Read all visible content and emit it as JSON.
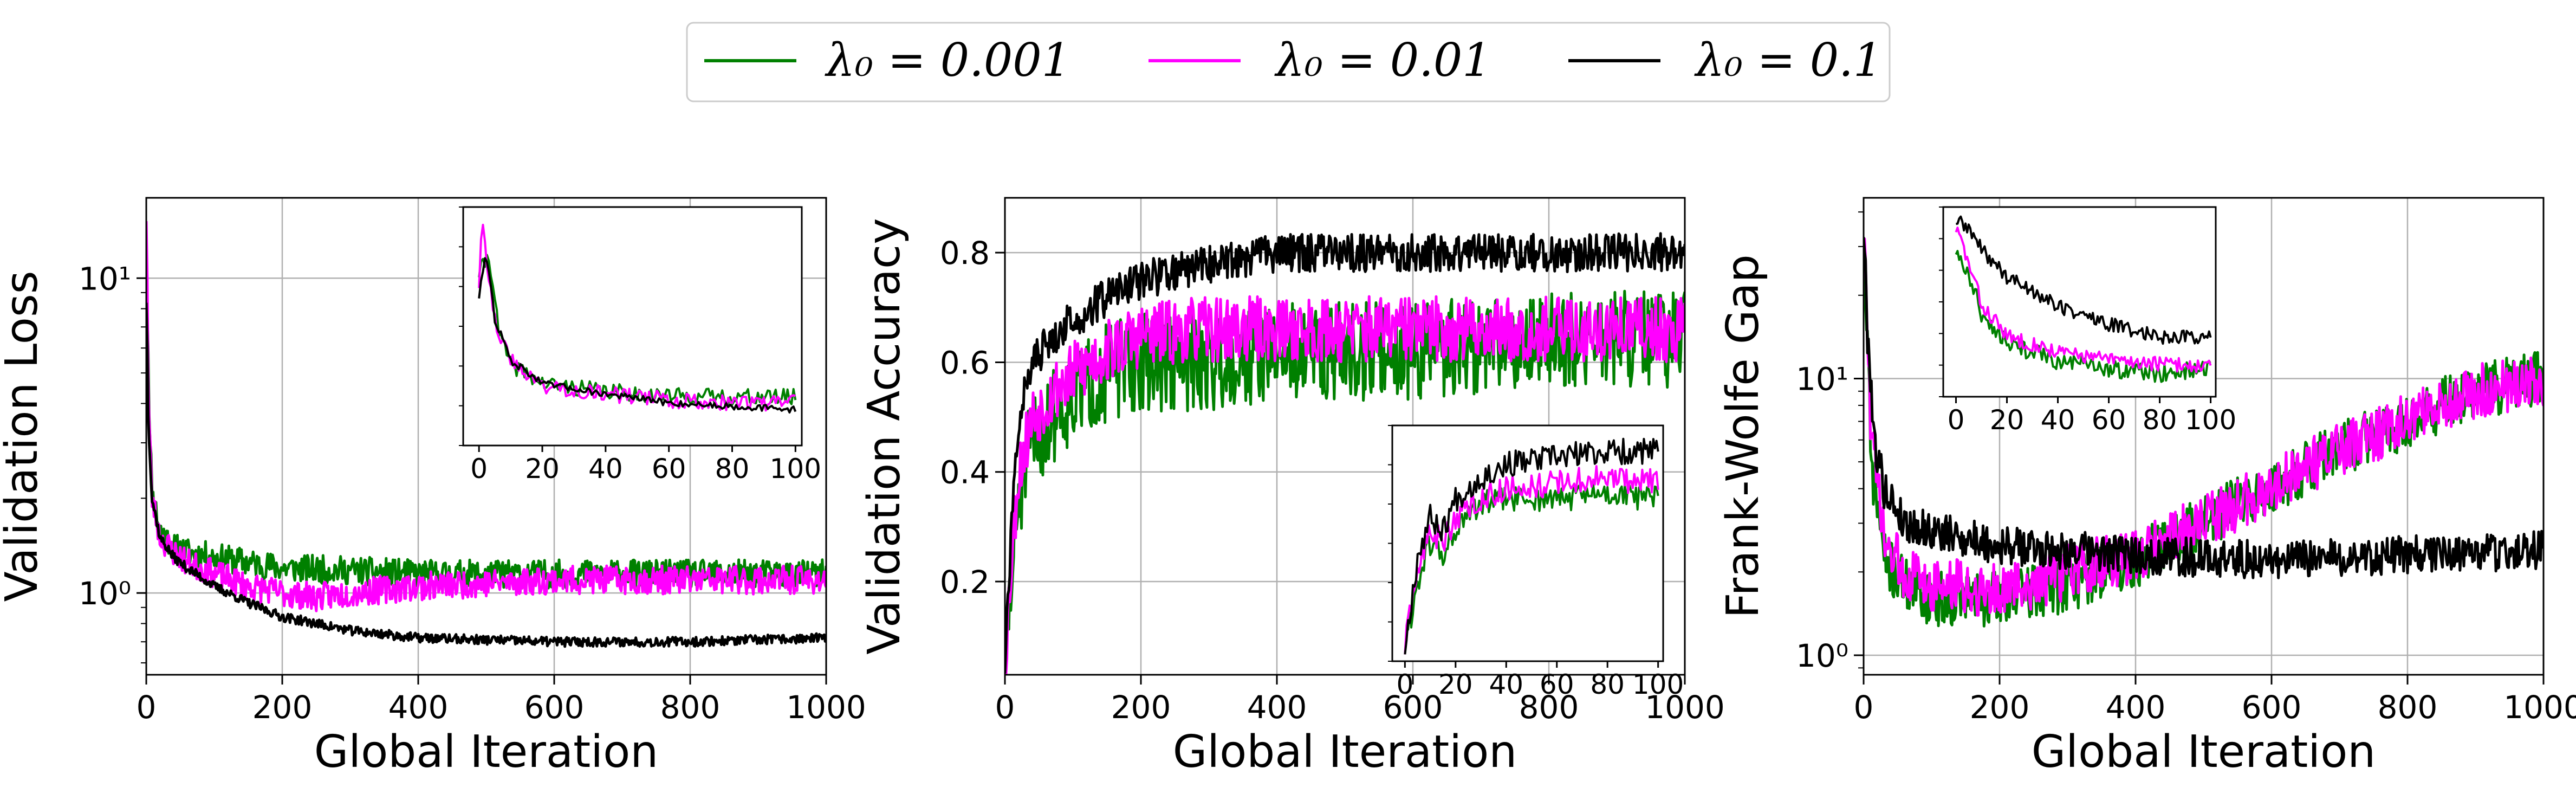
{
  "legend": {
    "entries": [
      {
        "label": "λ₀ = 0.001",
        "color": "#008000"
      },
      {
        "label": "λ₀ = 0.01",
        "color": "#ff00ff"
      },
      {
        "label": "λ₀ = 0.1",
        "color": "#000000"
      }
    ]
  },
  "chart_data": [
    {
      "type": "line",
      "xlabel": "Global Iteration",
      "ylabel": "Validation Loss",
      "xlim": [
        0,
        1000
      ],
      "ylim": [
        0.55,
        18
      ],
      "yscale": "log",
      "xticks": [
        0,
        200,
        400,
        600,
        800,
        1000
      ],
      "yticks": [
        {
          "value": 1,
          "label": "10⁰"
        },
        {
          "value": 10,
          "label": "10¹"
        }
      ],
      "grid": true,
      "series": [
        {
          "name": "λ₀ = 0.001",
          "color": "#008000",
          "noise": 0.045,
          "seed": 11,
          "x": [
            0,
            5,
            10,
            20,
            40,
            60,
            100,
            150,
            200,
            300,
            400,
            600,
            800,
            1000
          ],
          "y": [
            10,
            3.0,
            2.0,
            1.6,
            1.4,
            1.35,
            1.3,
            1.25,
            1.2,
            1.18,
            1.15,
            1.15,
            1.15,
            1.15
          ]
        },
        {
          "name": "λ₀ = 0.01",
          "color": "#ff00ff",
          "noise": 0.045,
          "seed": 23,
          "x": [
            0,
            3,
            8,
            20,
            40,
            60,
            100,
            150,
            200,
            250,
            300,
            400,
            600,
            800,
            1000
          ],
          "y": [
            16,
            4.0,
            2.0,
            1.5,
            1.35,
            1.25,
            1.15,
            1.05,
            1.0,
            0.97,
            1.0,
            1.05,
            1.1,
            1.1,
            1.1
          ]
        },
        {
          "name": "λ₀ = 0.1",
          "color": "#000000",
          "noise": 0.015,
          "seed": 37,
          "x": [
            0,
            3,
            8,
            20,
            40,
            60,
            100,
            150,
            200,
            300,
            400,
            600,
            800,
            1000
          ],
          "y": [
            8.5,
            3.5,
            2.0,
            1.5,
            1.3,
            1.2,
            1.05,
            0.93,
            0.84,
            0.76,
            0.72,
            0.7,
            0.7,
            0.72
          ]
        }
      ],
      "inset": {
        "xlim": [
          -5,
          102
        ],
        "yscale": "log",
        "ylim": [
          0.6,
          18
        ],
        "xticks": [
          0,
          20,
          40,
          60,
          80,
          100
        ],
        "series": [
          {
            "name": "λ₀ = 0.001",
            "color": "#008000",
            "noise": 0.05,
            "seed": 41,
            "x": [
              0,
              3,
              6,
              10,
              20,
              40,
              60,
              80,
              100
            ],
            "y": [
              7,
              9,
              3.0,
              1.9,
              1.45,
              1.3,
              1.22,
              1.2,
              1.2
            ]
          },
          {
            "name": "λ₀ = 0.01",
            "color": "#ff00ff",
            "noise": 0.05,
            "seed": 43,
            "x": [
              0,
              1,
              3,
              6,
              10,
              20,
              40,
              60,
              80,
              100
            ],
            "y": [
              6,
              16,
              6,
              3.0,
              2.0,
              1.4,
              1.25,
              1.15,
              1.1,
              1.1
            ]
          },
          {
            "name": "λ₀ = 0.1",
            "color": "#000000",
            "noise": 0.02,
            "seed": 47,
            "x": [
              0,
              2,
              5,
              10,
              20,
              40,
              60,
              80,
              100
            ],
            "y": [
              5,
              9,
              3.5,
              2.0,
              1.45,
              1.25,
              1.1,
              1.05,
              1.0
            ]
          }
        ]
      }
    },
    {
      "type": "line",
      "xlabel": "Global Iteration",
      "ylabel": "Validation Accuracy",
      "xlim": [
        0,
        1000
      ],
      "ylim": [
        0.03,
        0.9
      ],
      "yscale": "linear",
      "xticks": [
        0,
        200,
        400,
        600,
        800,
        1000
      ],
      "yticks": [
        {
          "value": 0.2,
          "label": "0.2"
        },
        {
          "value": 0.4,
          "label": "0.4"
        },
        {
          "value": 0.6,
          "label": "0.6"
        },
        {
          "value": 0.8,
          "label": "0.8"
        }
      ],
      "grid": true,
      "series": [
        {
          "name": "λ₀ = 0.001",
          "color": "#008000",
          "noise": 0.09,
          "seed": 51,
          "x": [
            0,
            10,
            20,
            40,
            80,
            150,
            200,
            300,
            400,
            600,
            800,
            1000
          ],
          "y": [
            0.05,
            0.2,
            0.35,
            0.45,
            0.52,
            0.58,
            0.6,
            0.6,
            0.62,
            0.62,
            0.64,
            0.64
          ]
        },
        {
          "name": "λ₀ = 0.01",
          "color": "#ff00ff",
          "noise": 0.06,
          "seed": 53,
          "x": [
            0,
            10,
            20,
            40,
            80,
            150,
            200,
            300,
            400,
            600,
            800,
            1000
          ],
          "y": [
            0.05,
            0.25,
            0.4,
            0.5,
            0.56,
            0.62,
            0.65,
            0.66,
            0.66,
            0.66,
            0.66,
            0.66
          ]
        },
        {
          "name": "λ₀ = 0.1",
          "color": "#000000",
          "noise": 0.035,
          "seed": 57,
          "x": [
            0,
            10,
            20,
            40,
            80,
            150,
            200,
            300,
            400,
            600,
            800,
            1000
          ],
          "y": [
            0.05,
            0.3,
            0.5,
            0.6,
            0.66,
            0.72,
            0.75,
            0.78,
            0.8,
            0.8,
            0.8,
            0.8
          ]
        }
      ],
      "inset": {
        "xlim": [
          -5,
          102
        ],
        "yscale": "linear",
        "ylim": [
          0.0,
          0.9
        ],
        "xticks": [
          0,
          20,
          40,
          60,
          80,
          100
        ],
        "series": [
          {
            "name": "λ₀ = 0.001",
            "color": "#008000",
            "noise": 0.05,
            "seed": 61,
            "x": [
              0,
              5,
              10,
              15,
              20,
              30,
              40,
              60,
              80,
              100
            ],
            "y": [
              0.05,
              0.3,
              0.45,
              0.4,
              0.5,
              0.6,
              0.62,
              0.62,
              0.64,
              0.62
            ]
          },
          {
            "name": "λ₀ = 0.01",
            "color": "#ff00ff",
            "noise": 0.05,
            "seed": 63,
            "x": [
              0,
              5,
              10,
              15,
              20,
              30,
              40,
              60,
              80,
              100
            ],
            "y": [
              0.05,
              0.35,
              0.5,
              0.45,
              0.55,
              0.62,
              0.66,
              0.68,
              0.7,
              0.68
            ]
          },
          {
            "name": "λ₀ = 0.1",
            "color": "#000000",
            "noise": 0.05,
            "seed": 67,
            "x": [
              0,
              5,
              10,
              15,
              20,
              30,
              40,
              60,
              80,
              100
            ],
            "y": [
              0.05,
              0.4,
              0.55,
              0.5,
              0.62,
              0.7,
              0.75,
              0.78,
              0.8,
              0.8
            ]
          }
        ]
      }
    },
    {
      "type": "line",
      "xlabel": "Global Iteration",
      "ylabel": "Frank-Wolfe Gap",
      "xlim": [
        0,
        1000
      ],
      "ylim": [
        0.85,
        45
      ],
      "yscale": "log",
      "xticks": [
        0,
        200,
        400,
        600,
        800,
        1000
      ],
      "yticks": [
        {
          "value": 1,
          "label": "10⁰"
        },
        {
          "value": 10,
          "label": "10¹"
        }
      ],
      "grid": true,
      "series": [
        {
          "name": "λ₀ = 0.001",
          "color": "#008000",
          "noise": 0.1,
          "seed": 71,
          "x": [
            0,
            10,
            30,
            60,
            100,
            200,
            300,
            400,
            500,
            600,
            700,
            800,
            900,
            1000
          ],
          "y": [
            25,
            5,
            2.2,
            1.8,
            1.6,
            1.6,
            1.8,
            2.2,
            3.0,
            4.0,
            5.5,
            7.0,
            9.0,
            10
          ]
        },
        {
          "name": "λ₀ = 0.01",
          "color": "#ff00ff",
          "noise": 0.1,
          "seed": 73,
          "x": [
            0,
            10,
            30,
            60,
            100,
            200,
            300,
            400,
            500,
            600,
            700,
            800,
            900,
            1000
          ],
          "y": [
            30,
            6,
            2.5,
            2.0,
            1.8,
            1.7,
            2.0,
            2.3,
            3.0,
            4.0,
            5.5,
            7.0,
            9.0,
            10
          ]
        },
        {
          "name": "λ₀ = 0.1",
          "color": "#000000",
          "noise": 0.07,
          "seed": 79,
          "x": [
            0,
            5,
            15,
            30,
            60,
            100,
            200,
            300,
            400,
            600,
            800,
            1000
          ],
          "y": [
            35,
            15,
            6,
            4.0,
            3.0,
            2.8,
            2.5,
            2.4,
            2.3,
            2.2,
            2.3,
            2.4
          ]
        }
      ],
      "inset": {
        "xlim": [
          -5,
          102
        ],
        "yscale": "log",
        "ylim": [
          1.3,
          45
        ],
        "xticks": [
          0,
          20,
          40,
          60,
          80,
          100
        ],
        "series": [
          {
            "name": "λ₀ = 0.001",
            "color": "#008000",
            "noise": 0.07,
            "seed": 81,
            "x": [
              0,
              5,
              10,
              20,
              40,
              60,
              80,
              100
            ],
            "y": [
              20,
              12,
              6,
              3.5,
              2.5,
              2.2,
              2.0,
              2.2
            ]
          },
          {
            "name": "λ₀ = 0.01",
            "color": "#ff00ff",
            "noise": 0.06,
            "seed": 83,
            "x": [
              0,
              5,
              10,
              20,
              40,
              60,
              80,
              100
            ],
            "y": [
              30,
              15,
              7,
              4.0,
              3.0,
              2.6,
              2.4,
              2.3
            ]
          },
          {
            "name": "λ₀ = 0.1",
            "color": "#000000",
            "noise": 0.06,
            "seed": 89,
            "x": [
              0,
              5,
              10,
              20,
              40,
              60,
              80,
              100
            ],
            "y": [
              35,
              30,
              20,
              12,
              7,
              5,
              4,
              4
            ]
          }
        ]
      }
    }
  ]
}
